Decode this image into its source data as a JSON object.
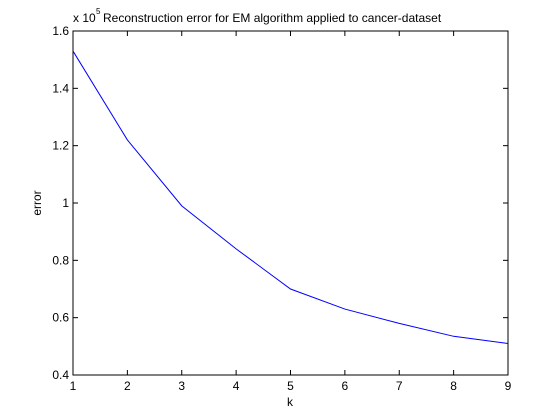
{
  "chart_data": {
    "type": "line",
    "title": "Reconstruction error for EM algorithm applied to cancer-dataset",
    "xlabel": "k",
    "ylabel": "error",
    "exponent_prefix": "x 10",
    "exponent_power": "5",
    "x": [
      1,
      2,
      3,
      4,
      5,
      6,
      7,
      8,
      9
    ],
    "series": [
      {
        "values": [
          153000,
          122000,
          99000,
          84000,
          70000,
          63000,
          58000,
          53500,
          51000
        ]
      }
    ],
    "xlim": [
      1,
      9
    ],
    "ylim": [
      40000,
      160000
    ],
    "x_ticks": [
      1,
      2,
      3,
      4,
      5,
      6,
      7,
      8,
      9
    ],
    "x_tick_labels": [
      "1",
      "2",
      "3",
      "4",
      "5",
      "6",
      "7",
      "8",
      "9"
    ],
    "y_ticks": [
      40000,
      60000,
      80000,
      100000,
      120000,
      140000,
      160000
    ],
    "y_tick_labels": [
      "0.4",
      "0.6",
      "0.8",
      "1",
      "1.2",
      "1.4",
      "1.6"
    ],
    "grid": false,
    "line_color": "#0000ff"
  }
}
